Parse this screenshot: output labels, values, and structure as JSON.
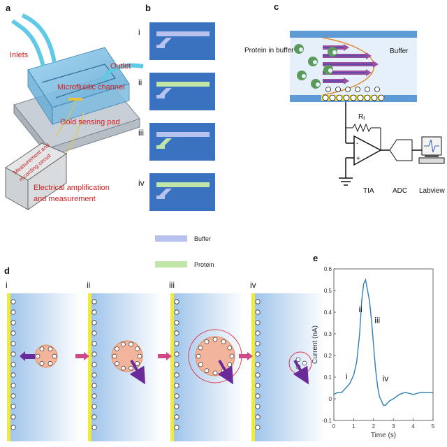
{
  "panels": {
    "a": {
      "label": "a",
      "inlets": "Inlets",
      "outlet": "Outlet",
      "channel": "Microfluidic channel",
      "pad": "Gold sensing pad",
      "box_line1": "Measurement and",
      "box_line2": "recording circuit",
      "amp_line1": "Electrical amplification",
      "amp_line2": "and measurement"
    },
    "b": {
      "label": "b",
      "rows": [
        "i",
        "ii",
        "iii",
        "iv"
      ],
      "legend_buffer": "Buffer",
      "legend_protein": "Protein",
      "buffer_color": "#b8c2ef",
      "protein_color": "#bfe6a8"
    },
    "c": {
      "label": "c",
      "protein_in_buffer": "Protein in buffer",
      "buffer": "Buffer",
      "rf": "R",
      "rf_sub": "f",
      "minus": "-",
      "plus": "+",
      "tia": "TIA",
      "adc": "ADC",
      "labview": "Labview"
    },
    "d": {
      "label": "d",
      "steps": [
        "i",
        "ii",
        "iii",
        "iv"
      ]
    },
    "e": {
      "label": "e",
      "ylabel": "Current (nA)",
      "xlabel": "Time (s)",
      "annotations": [
        "i",
        "ii",
        "iii",
        "iv"
      ]
    }
  },
  "chart_data": {
    "type": "line",
    "xlabel": "Time (s)",
    "ylabel": "Current (nA)",
    "xlim": [
      0,
      5
    ],
    "ylim": [
      -0.1,
      0.6
    ],
    "xticks": [
      "0",
      "1",
      "2",
      "3",
      "4",
      "5"
    ],
    "yticks": [
      "-0.1",
      "0",
      "0.1",
      "0.2",
      "0.3",
      "0.4",
      "0.5",
      "0.6"
    ],
    "series": [
      {
        "color": "#2f7fb5",
        "x": [
          0,
          0.2,
          0.4,
          0.6,
          0.8,
          1.0,
          1.15,
          1.3,
          1.4,
          1.5,
          1.6,
          1.7,
          1.8,
          1.9,
          2.0,
          2.1,
          2.2,
          2.3,
          2.4,
          2.5,
          2.6,
          2.8,
          3.0,
          3.3,
          3.6,
          4.0,
          4.4,
          4.8,
          5.0
        ],
        "y": [
          0.02,
          0.03,
          0.03,
          0.05,
          0.07,
          0.11,
          0.17,
          0.3,
          0.45,
          0.53,
          0.55,
          0.5,
          0.45,
          0.36,
          0.25,
          0.14,
          0.06,
          0.01,
          -0.01,
          -0.03,
          -0.03,
          -0.01,
          0.0,
          0.02,
          0.03,
          0.02,
          0.03,
          0.03,
          0.03
        ]
      }
    ],
    "annotations": [
      {
        "text": "i",
        "x": 0.6,
        "y": 0.09
      },
      {
        "text": "ii",
        "x": 1.25,
        "y": 0.4
      },
      {
        "text": "iii",
        "x": 2.05,
        "y": 0.35
      },
      {
        "text": "iv",
        "x": 2.45,
        "y": 0.08
      }
    ]
  }
}
